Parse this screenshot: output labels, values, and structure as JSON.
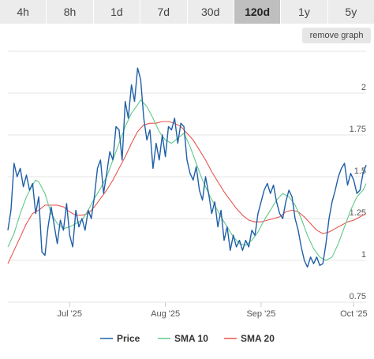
{
  "tabs": [
    {
      "label": "4h",
      "active": false
    },
    {
      "label": "8h",
      "active": false
    },
    {
      "label": "1d",
      "active": false
    },
    {
      "label": "7d",
      "active": false
    },
    {
      "label": "30d",
      "active": false
    },
    {
      "label": "120d",
      "active": true
    },
    {
      "label": "1y",
      "active": false
    },
    {
      "label": "5y",
      "active": false
    }
  ],
  "remove_graph_label": "remove graph",
  "chart_data": {
    "type": "line",
    "title": "",
    "xlabel": "",
    "ylabel": "",
    "x_ticks": [
      "Jul '25",
      "Aug '25",
      "Sep '25",
      "Oct '25"
    ],
    "y_ticks": [
      "0.75",
      "1",
      "1.25",
      "1.5",
      "1.75",
      "2"
    ],
    "y_tick_values": [
      0.75,
      1,
      1.25,
      1.5,
      1.75,
      2
    ],
    "ylim": [
      0.75,
      2.25
    ],
    "x_range": [
      "2025-06-11",
      "2025-10-05"
    ],
    "x_tick_dates": [
      "2025-07-01",
      "2025-08-01",
      "2025-09-01",
      "2025-10-01"
    ],
    "grid": "horizontal",
    "legend_position": "bottom",
    "series": [
      {
        "name": "Price",
        "color": "#1f5fa8",
        "points": [
          [
            "2025-06-11",
            1.18
          ],
          [
            "2025-06-12",
            1.3
          ],
          [
            "2025-06-13",
            1.58
          ],
          [
            "2025-06-14",
            1.5
          ],
          [
            "2025-06-15",
            1.55
          ],
          [
            "2025-06-16",
            1.44
          ],
          [
            "2025-06-17",
            1.51
          ],
          [
            "2025-06-18",
            1.42
          ],
          [
            "2025-06-19",
            1.46
          ],
          [
            "2025-06-20",
            1.28
          ],
          [
            "2025-06-21",
            1.38
          ],
          [
            "2025-06-22",
            1.05
          ],
          [
            "2025-06-23",
            1.03
          ],
          [
            "2025-06-24",
            1.2
          ],
          [
            "2025-06-25",
            1.32
          ],
          [
            "2025-06-26",
            1.21
          ],
          [
            "2025-06-27",
            1.1
          ],
          [
            "2025-06-28",
            1.24
          ],
          [
            "2025-06-29",
            1.18
          ],
          [
            "2025-06-30",
            1.34
          ],
          [
            "2025-07-01",
            1.15
          ],
          [
            "2025-07-02",
            1.08
          ],
          [
            "2025-07-03",
            1.3
          ],
          [
            "2025-07-04",
            1.2
          ],
          [
            "2025-07-05",
            1.25
          ],
          [
            "2025-07-06",
            1.18
          ],
          [
            "2025-07-07",
            1.3
          ],
          [
            "2025-07-08",
            1.25
          ],
          [
            "2025-07-09",
            1.38
          ],
          [
            "2025-07-10",
            1.55
          ],
          [
            "2025-07-11",
            1.6
          ],
          [
            "2025-07-12",
            1.4
          ],
          [
            "2025-07-13",
            1.52
          ],
          [
            "2025-07-14",
            1.65
          ],
          [
            "2025-07-15",
            1.6
          ],
          [
            "2025-07-16",
            1.8
          ],
          [
            "2025-07-17",
            1.78
          ],
          [
            "2025-07-18",
            1.6
          ],
          [
            "2025-07-19",
            1.95
          ],
          [
            "2025-07-20",
            1.85
          ],
          [
            "2025-07-21",
            2.05
          ],
          [
            "2025-07-22",
            1.95
          ],
          [
            "2025-07-23",
            2.15
          ],
          [
            "2025-07-24",
            2.08
          ],
          [
            "2025-07-25",
            1.85
          ],
          [
            "2025-07-26",
            1.72
          ],
          [
            "2025-07-27",
            1.78
          ],
          [
            "2025-07-28",
            1.55
          ],
          [
            "2025-07-29",
            1.7
          ],
          [
            "2025-07-30",
            1.6
          ],
          [
            "2025-07-31",
            1.75
          ],
          [
            "2025-08-01",
            1.62
          ],
          [
            "2025-08-02",
            1.8
          ],
          [
            "2025-08-03",
            1.78
          ],
          [
            "2025-08-04",
            1.85
          ],
          [
            "2025-08-05",
            1.7
          ],
          [
            "2025-08-06",
            1.82
          ],
          [
            "2025-08-07",
            1.8
          ],
          [
            "2025-08-08",
            1.6
          ],
          [
            "2025-08-09",
            1.52
          ],
          [
            "2025-08-10",
            1.48
          ],
          [
            "2025-08-11",
            1.56
          ],
          [
            "2025-08-12",
            1.42
          ],
          [
            "2025-08-13",
            1.36
          ],
          [
            "2025-08-14",
            1.5
          ],
          [
            "2025-08-15",
            1.4
          ],
          [
            "2025-08-16",
            1.28
          ],
          [
            "2025-08-17",
            1.35
          ],
          [
            "2025-08-18",
            1.2
          ],
          [
            "2025-08-19",
            1.3
          ],
          [
            "2025-08-20",
            1.12
          ],
          [
            "2025-08-21",
            1.2
          ],
          [
            "2025-08-22",
            1.06
          ],
          [
            "2025-08-23",
            1.15
          ],
          [
            "2025-08-24",
            1.08
          ],
          [
            "2025-08-25",
            1.12
          ],
          [
            "2025-08-26",
            1.06
          ],
          [
            "2025-08-27",
            1.12
          ],
          [
            "2025-08-28",
            1.08
          ],
          [
            "2025-08-29",
            1.18
          ],
          [
            "2025-08-30",
            1.15
          ],
          [
            "2025-08-31",
            1.28
          ],
          [
            "2025-09-01",
            1.35
          ],
          [
            "2025-09-02",
            1.42
          ],
          [
            "2025-09-03",
            1.46
          ],
          [
            "2025-09-04",
            1.4
          ],
          [
            "2025-09-05",
            1.45
          ],
          [
            "2025-09-06",
            1.35
          ],
          [
            "2025-09-07",
            1.28
          ],
          [
            "2025-09-08",
            1.25
          ],
          [
            "2025-09-09",
            1.35
          ],
          [
            "2025-09-10",
            1.42
          ],
          [
            "2025-09-11",
            1.38
          ],
          [
            "2025-09-12",
            1.25
          ],
          [
            "2025-09-13",
            1.18
          ],
          [
            "2025-09-14",
            1.08
          ],
          [
            "2025-09-15",
            1.0
          ],
          [
            "2025-09-16",
            0.96
          ],
          [
            "2025-09-17",
            1.02
          ],
          [
            "2025-09-18",
            0.98
          ],
          [
            "2025-09-19",
            1.02
          ],
          [
            "2025-09-20",
            0.97
          ],
          [
            "2025-09-21",
            0.98
          ],
          [
            "2025-09-22",
            1.1
          ],
          [
            "2025-09-23",
            1.25
          ],
          [
            "2025-09-24",
            1.35
          ],
          [
            "2025-09-25",
            1.42
          ],
          [
            "2025-09-26",
            1.5
          ],
          [
            "2025-09-27",
            1.55
          ],
          [
            "2025-09-28",
            1.58
          ],
          [
            "2025-09-29",
            1.45
          ],
          [
            "2025-09-30",
            1.52
          ],
          [
            "2025-10-01",
            1.48
          ],
          [
            "2025-10-02",
            1.4
          ],
          [
            "2025-10-03",
            1.42
          ],
          [
            "2025-10-04",
            1.52
          ],
          [
            "2025-10-05",
            1.57
          ]
        ]
      },
      {
        "name": "SMA 10",
        "color": "#5fc98a",
        "points": [
          [
            "2025-06-11",
            1.08
          ],
          [
            "2025-06-13",
            1.16
          ],
          [
            "2025-06-15",
            1.28
          ],
          [
            "2025-06-17",
            1.38
          ],
          [
            "2025-06-19",
            1.45
          ],
          [
            "2025-06-20",
            1.48
          ],
          [
            "2025-06-21",
            1.47
          ],
          [
            "2025-06-23",
            1.4
          ],
          [
            "2025-06-25",
            1.28
          ],
          [
            "2025-06-27",
            1.22
          ],
          [
            "2025-06-29",
            1.19
          ],
          [
            "2025-07-01",
            1.2
          ],
          [
            "2025-07-03",
            1.22
          ],
          [
            "2025-07-05",
            1.24
          ],
          [
            "2025-07-07",
            1.3
          ],
          [
            "2025-07-09",
            1.37
          ],
          [
            "2025-07-11",
            1.43
          ],
          [
            "2025-07-13",
            1.5
          ],
          [
            "2025-07-15",
            1.6
          ],
          [
            "2025-07-17",
            1.7
          ],
          [
            "2025-07-19",
            1.8
          ],
          [
            "2025-07-21",
            1.88
          ],
          [
            "2025-07-23",
            1.93
          ],
          [
            "2025-07-24",
            1.96
          ],
          [
            "2025-07-26",
            1.92
          ],
          [
            "2025-07-28",
            1.85
          ],
          [
            "2025-07-30",
            1.77
          ],
          [
            "2025-08-01",
            1.72
          ],
          [
            "2025-08-03",
            1.7
          ],
          [
            "2025-08-05",
            1.73
          ],
          [
            "2025-08-07",
            1.76
          ],
          [
            "2025-08-09",
            1.68
          ],
          [
            "2025-08-11",
            1.58
          ],
          [
            "2025-08-13",
            1.48
          ],
          [
            "2025-08-15",
            1.4
          ],
          [
            "2025-08-17",
            1.33
          ],
          [
            "2025-08-19",
            1.26
          ],
          [
            "2025-08-21",
            1.2
          ],
          [
            "2025-08-23",
            1.14
          ],
          [
            "2025-08-25",
            1.1
          ],
          [
            "2025-08-27",
            1.09
          ],
          [
            "2025-08-29",
            1.12
          ],
          [
            "2025-08-31",
            1.17
          ],
          [
            "2025-09-02",
            1.24
          ],
          [
            "2025-09-04",
            1.3
          ],
          [
            "2025-09-06",
            1.36
          ],
          [
            "2025-09-08",
            1.4
          ],
          [
            "2025-09-10",
            1.38
          ],
          [
            "2025-09-12",
            1.33
          ],
          [
            "2025-09-14",
            1.25
          ],
          [
            "2025-09-16",
            1.15
          ],
          [
            "2025-09-18",
            1.07
          ],
          [
            "2025-09-20",
            1.02
          ],
          [
            "2025-09-22",
            1.0
          ],
          [
            "2025-09-24",
            1.02
          ],
          [
            "2025-09-26",
            1.1
          ],
          [
            "2025-09-28",
            1.2
          ],
          [
            "2025-09-30",
            1.3
          ],
          [
            "2025-10-02",
            1.38
          ],
          [
            "2025-10-04",
            1.42
          ],
          [
            "2025-10-05",
            1.46
          ]
        ]
      },
      {
        "name": "SMA 20",
        "color": "#e8554e",
        "points": [
          [
            "2025-06-11",
            0.98
          ],
          [
            "2025-06-13",
            1.06
          ],
          [
            "2025-06-15",
            1.14
          ],
          [
            "2025-06-17",
            1.22
          ],
          [
            "2025-06-19",
            1.28
          ],
          [
            "2025-06-21",
            1.3
          ],
          [
            "2025-06-23",
            1.33
          ],
          [
            "2025-06-25",
            1.33
          ],
          [
            "2025-06-27",
            1.33
          ],
          [
            "2025-06-29",
            1.32
          ],
          [
            "2025-07-01",
            1.29
          ],
          [
            "2025-07-03",
            1.27
          ],
          [
            "2025-07-05",
            1.27
          ],
          [
            "2025-07-07",
            1.28
          ],
          [
            "2025-07-09",
            1.32
          ],
          [
            "2025-07-11",
            1.37
          ],
          [
            "2025-07-13",
            1.42
          ],
          [
            "2025-07-15",
            1.48
          ],
          [
            "2025-07-17",
            1.55
          ],
          [
            "2025-07-19",
            1.62
          ],
          [
            "2025-07-21",
            1.7
          ],
          [
            "2025-07-23",
            1.77
          ],
          [
            "2025-07-25",
            1.81
          ],
          [
            "2025-07-27",
            1.82
          ],
          [
            "2025-07-29",
            1.82
          ],
          [
            "2025-07-31",
            1.83
          ],
          [
            "2025-08-02",
            1.83
          ],
          [
            "2025-08-04",
            1.82
          ],
          [
            "2025-08-06",
            1.8
          ],
          [
            "2025-08-08",
            1.76
          ],
          [
            "2025-08-10",
            1.72
          ],
          [
            "2025-08-12",
            1.66
          ],
          [
            "2025-08-14",
            1.6
          ],
          [
            "2025-08-16",
            1.53
          ],
          [
            "2025-08-18",
            1.47
          ],
          [
            "2025-08-20",
            1.41
          ],
          [
            "2025-08-22",
            1.36
          ],
          [
            "2025-08-24",
            1.31
          ],
          [
            "2025-08-26",
            1.27
          ],
          [
            "2025-08-28",
            1.24
          ],
          [
            "2025-08-30",
            1.23
          ],
          [
            "2025-09-01",
            1.23
          ],
          [
            "2025-09-03",
            1.24
          ],
          [
            "2025-09-05",
            1.25
          ],
          [
            "2025-09-07",
            1.26
          ],
          [
            "2025-09-09",
            1.29
          ],
          [
            "2025-09-11",
            1.3
          ],
          [
            "2025-09-13",
            1.29
          ],
          [
            "2025-09-15",
            1.26
          ],
          [
            "2025-09-17",
            1.22
          ],
          [
            "2025-09-19",
            1.18
          ],
          [
            "2025-09-21",
            1.16
          ],
          [
            "2025-09-23",
            1.17
          ],
          [
            "2025-09-25",
            1.19
          ],
          [
            "2025-09-27",
            1.21
          ],
          [
            "2025-09-29",
            1.23
          ],
          [
            "2025-10-01",
            1.24
          ],
          [
            "2025-10-03",
            1.26
          ],
          [
            "2025-10-05",
            1.28
          ]
        ]
      }
    ]
  }
}
